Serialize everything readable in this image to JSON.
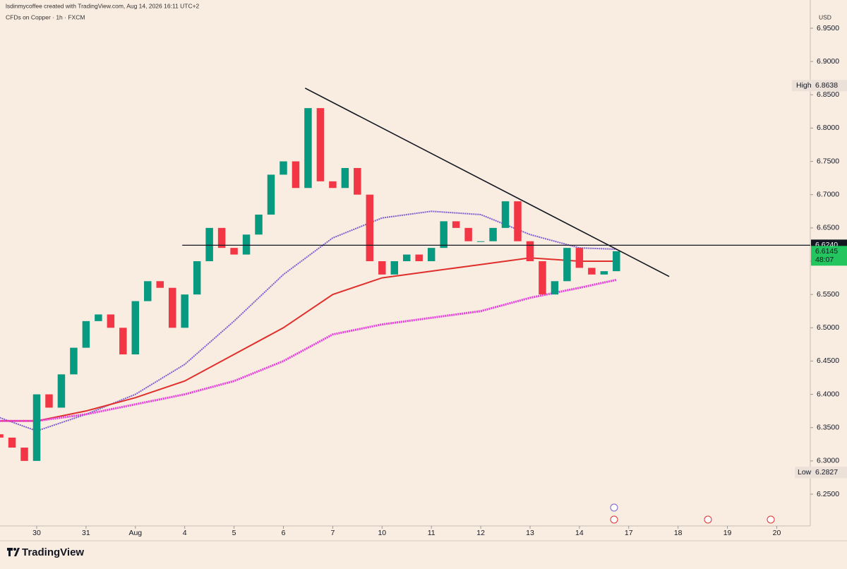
{
  "header": {
    "author_line": "lsdinmycoffee created with TradingView.com, Aug 14, 2026 16:11 UTC+2",
    "symbol_line": "CFDs on Copper · 1h · FXCM"
  },
  "chart_data": {
    "type": "candlestick",
    "currency": "USD",
    "x": [
      -0.75,
      -0.5,
      -0.25,
      0,
      0.25,
      0.5,
      0.75,
      1,
      1.25,
      1.5,
      1.75,
      2,
      2.25,
      2.5,
      2.75,
      3,
      3.25,
      3.5,
      3.75,
      4,
      4.25,
      4.5,
      4.75,
      5,
      5.25,
      5.5,
      5.75,
      6,
      6.25,
      6.5,
      6.75,
      7,
      7.25,
      7.5,
      7.75,
      8,
      8.25,
      8.5,
      8.75,
      9,
      9.25,
      9.5,
      9.75,
      10,
      10.25,
      10.5,
      10.75,
      11,
      11.25,
      11.5,
      11.75
    ],
    "open": [
      6.34,
      6.335,
      6.32,
      6.3,
      6.4,
      6.38,
      6.43,
      6.47,
      6.51,
      6.52,
      6.5,
      6.46,
      6.54,
      6.57,
      6.56,
      6.5,
      6.55,
      6.6,
      6.65,
      6.62,
      6.61,
      6.64,
      6.67,
      6.73,
      6.75,
      6.71,
      6.83,
      6.72,
      6.71,
      6.74,
      6.7,
      6.6,
      6.58,
      6.6,
      6.61,
      6.6,
      6.62,
      6.66,
      6.65,
      6.63,
      6.63,
      6.65,
      6.69,
      6.63,
      6.6,
      6.55,
      6.57,
      6.62,
      6.59,
      6.58,
      6.585
    ],
    "high": {
      "label": "High",
      "value": 6.8638
    },
    "low": {
      "label": "Low",
      "value": 6.2827
    },
    "close": [
      6.335,
      6.32,
      6.3,
      6.4,
      6.38,
      6.43,
      6.47,
      6.51,
      6.52,
      6.5,
      6.46,
      6.54,
      6.57,
      6.56,
      6.5,
      6.55,
      6.6,
      6.65,
      6.62,
      6.61,
      6.64,
      6.67,
      6.73,
      6.75,
      6.71,
      6.83,
      6.72,
      6.71,
      6.74,
      6.7,
      6.6,
      6.58,
      6.6,
      6.61,
      6.6,
      6.62,
      6.66,
      6.65,
      6.63,
      6.63,
      6.65,
      6.69,
      6.63,
      6.6,
      6.55,
      6.57,
      6.62,
      6.59,
      6.58,
      6.585,
      6.615
    ],
    "up_color": "#089981",
    "down_color": "#f23645",
    "overlay_x": [
      -0.75,
      0,
      1,
      2,
      3,
      4,
      5,
      6,
      7,
      8,
      9,
      10,
      11,
      11.75
    ],
    "overlays": [
      {
        "color": "#7b5fd0",
        "values": [
          6.365,
          6.345,
          6.37,
          6.4,
          6.445,
          6.51,
          6.58,
          6.635,
          6.665,
          6.675,
          6.67,
          6.64,
          6.62,
          6.618
        ]
      },
      {
        "color": "#e0302c",
        "values": [
          6.36,
          6.36,
          6.375,
          6.395,
          6.42,
          6.46,
          6.5,
          6.55,
          6.575,
          6.585,
          6.595,
          6.605,
          6.6,
          6.6
        ]
      },
      {
        "color": "#e83ee0",
        "values": [
          6.36,
          6.36,
          6.37,
          6.385,
          6.4,
          6.42,
          6.45,
          6.49,
          6.505,
          6.515,
          6.525,
          6.545,
          6.56,
          6.572
        ]
      }
    ],
    "trendline": {
      "x": [
        5.44,
        12.82
      ],
      "y": [
        6.86,
        6.577
      ]
    },
    "horizontal_line": {
      "x_start": 2.95,
      "value": 6.624,
      "label": "6.6240"
    },
    "last_price": 6.6145,
    "countdown": "48:07",
    "xlim": [
      -0.744,
      15.637
    ],
    "ylim": [
      6.2023,
      6.9924
    ],
    "yticks": [
      {
        "value": 6.25,
        "label": "6.2500"
      },
      {
        "value": 6.3,
        "label": "6.3000"
      },
      {
        "value": 6.35,
        "label": "6.3500"
      },
      {
        "value": 6.4,
        "label": "6.4000"
      },
      {
        "value": 6.45,
        "label": "6.4500"
      },
      {
        "value": 6.5,
        "label": "6.5000"
      },
      {
        "value": 6.55,
        "label": "6.5500"
      },
      {
        "value": 6.6,
        "label": "6.6000"
      },
      {
        "value": 6.65,
        "label": "6.6500"
      },
      {
        "value": 6.7,
        "label": "6.7000"
      },
      {
        "value": 6.75,
        "label": "6.7500"
      },
      {
        "value": 6.8,
        "label": "6.8000"
      },
      {
        "value": 6.85,
        "label": "6.8500"
      },
      {
        "value": 6.9,
        "label": "6.9000"
      },
      {
        "value": 6.95,
        "label": "6.9500"
      }
    ],
    "xticks": [
      {
        "value": 0,
        "label": "30"
      },
      {
        "value": 1,
        "label": "31"
      },
      {
        "value": 2,
        "label": "Aug"
      },
      {
        "value": 3,
        "label": "4"
      },
      {
        "value": 4,
        "label": "5"
      },
      {
        "value": 5,
        "label": "6"
      },
      {
        "value": 6,
        "label": "7"
      },
      {
        "value": 7,
        "label": "10"
      },
      {
        "value": 8,
        "label": "11"
      },
      {
        "value": 9,
        "label": "12"
      },
      {
        "value": 10,
        "label": "13"
      },
      {
        "value": 11,
        "label": "14"
      },
      {
        "value": 12,
        "label": "17"
      },
      {
        "value": 13,
        "label": "18"
      },
      {
        "value": 14,
        "label": "19"
      },
      {
        "value": 15,
        "label": "20"
      }
    ]
  },
  "footer": {
    "brand": "TradingView"
  }
}
